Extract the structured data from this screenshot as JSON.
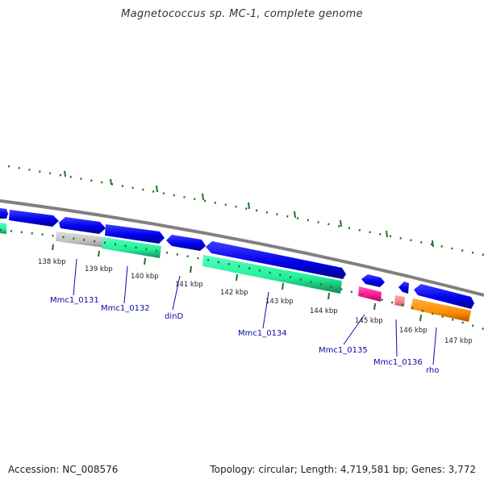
{
  "title": "Magnetococcus sp. MC-1, complete genome",
  "footer": {
    "accession": "Accession: NC_008576",
    "stats": "Topology: circular; Length: 4,719,581 bp; Genes: 3,772"
  },
  "scale_labels": [
    "138 kbp",
    "139 kbp",
    "140 kbp",
    "141 kbp",
    "142 kbp",
    "143 kbp",
    "144 kbp",
    "145 kbp",
    "146 kbp",
    "147 kbp"
  ],
  "gene_labels": [
    "Mmc1_0131",
    "Mmc1_0132",
    "dinD",
    "Mmc1_0134",
    "Mmc1_0135",
    "Mmc1_0136",
    "rho"
  ],
  "colors": {
    "forward_cds": "#0000ee",
    "reverse_cds": "#0000ee",
    "rrna_green": "#22ee99",
    "gray_feature": "#c0c0c0",
    "magenta_feature": "#ff1493",
    "pink_feature": "#f08080",
    "orange_feature": "#ff8c00",
    "backbone": "#808080",
    "tick": "#207020",
    "label_line": "#0a0aa8"
  }
}
